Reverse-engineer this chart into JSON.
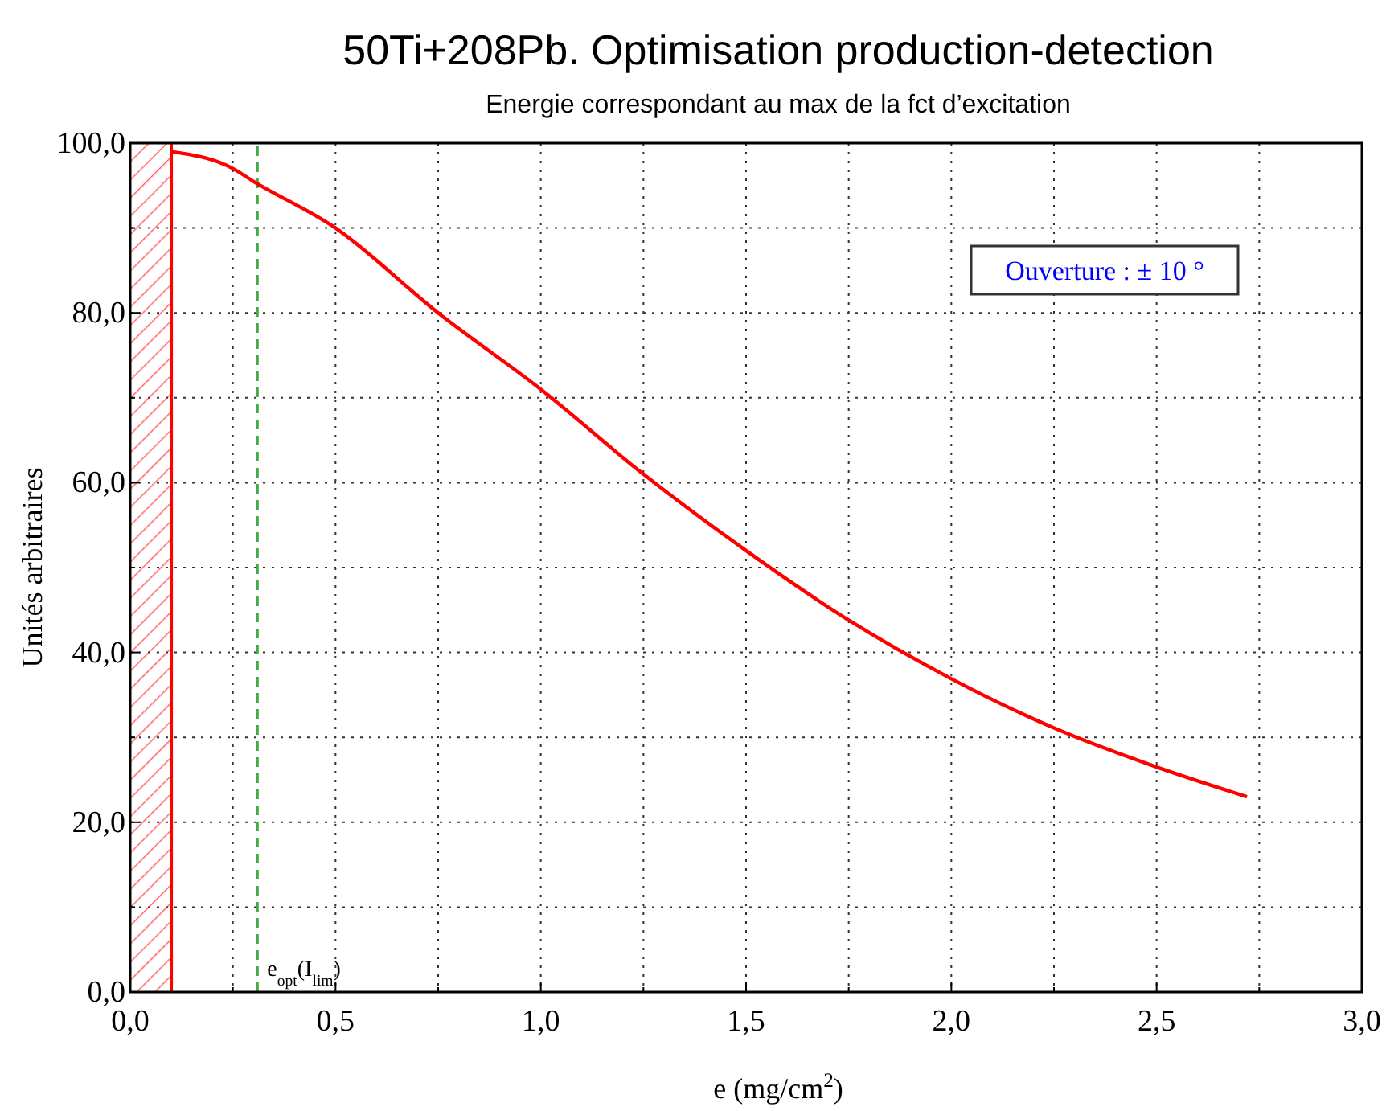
{
  "chart_data": {
    "type": "line",
    "title": "50Ti+208Pb. Optimisation production-detection",
    "subtitle": "Energie correspondant au max de la fct d’excitation",
    "xlabel": "e (mg/cm$^{2}$)",
    "ylabel": "Unités arbitraires",
    "series": [
      {
        "color": "#ff0000",
        "x": [
          0.1,
          0.25,
          0.3,
          0.5,
          0.75,
          1.0,
          1.25,
          1.5,
          1.75,
          2.0,
          2.25,
          2.5,
          2.72
        ],
        "values": [
          99,
          97,
          95.5,
          90,
          80,
          71,
          61,
          52,
          43.8,
          36.9,
          31.1,
          26.5,
          23
        ]
      }
    ],
    "xlim": [
      0,
      3
    ],
    "ylim": [
      0,
      100
    ],
    "xticks": [
      {
        "value": 0,
        "label": "0,0"
      },
      {
        "value": 0.25,
        "label": null
      },
      {
        "value": 0.5,
        "label": "0,5"
      },
      {
        "value": 0.75,
        "label": null
      },
      {
        "value": 1,
        "label": "1,0"
      },
      {
        "value": 1.25,
        "label": null
      },
      {
        "value": 1.5,
        "label": "1,5"
      },
      {
        "value": 1.75,
        "label": null
      },
      {
        "value": 2,
        "label": "2,0"
      },
      {
        "value": 2.25,
        "label": null
      },
      {
        "value": 2.5,
        "label": "2,5"
      },
      {
        "value": 2.75,
        "label": null
      },
      {
        "value": 3,
        "label": "3,0"
      }
    ],
    "yticks": [
      {
        "value": 0,
        "label": "0,0"
      },
      {
        "value": 10,
        "label": null
      },
      {
        "value": 20,
        "label": "20,0"
      },
      {
        "value": 30,
        "label": null
      },
      {
        "value": 40,
        "label": "40,0"
      },
      {
        "value": 50,
        "label": null
      },
      {
        "value": 60,
        "label": "60,0"
      },
      {
        "value": 70,
        "label": null
      },
      {
        "value": 80,
        "label": "80,0"
      },
      {
        "value": 90,
        "label": null
      },
      {
        "value": 100,
        "label": "100,0"
      }
    ],
    "grid": true,
    "line_style": "solid",
    "marker": "none",
    "bands": [
      {
        "axis": "x",
        "from": 0,
        "to": 0.1,
        "color": "#ff0000"
      }
    ],
    "ref_lines": [
      {
        "axis": "x",
        "value": 0.1,
        "color": "#ff0000",
        "line_style": "solid"
      },
      {
        "axis": "x",
        "value": 0.31,
        "label": "e$_{opt}$(I$_{lim}$)",
        "color": "#44aa44",
        "line_style": "dashed"
      }
    ],
    "annotations": [
      "Ouverture : ± 10 °"
    ]
  }
}
